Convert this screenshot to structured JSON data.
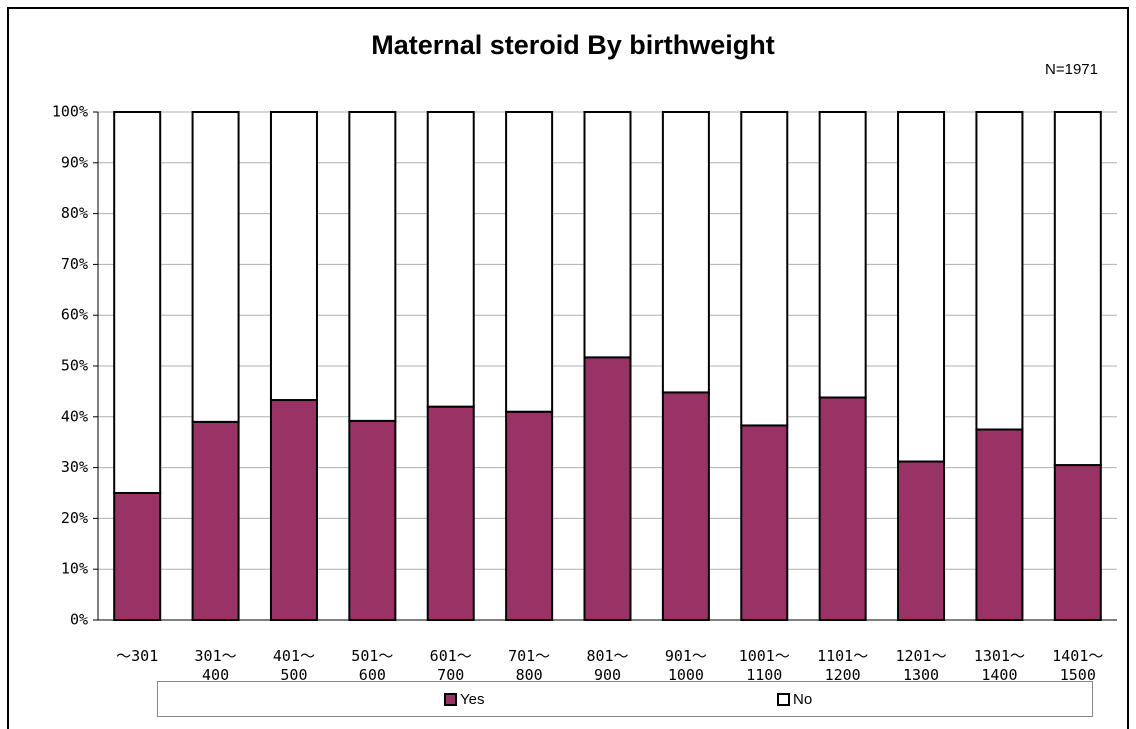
{
  "chart_data": {
    "type": "stacked_bar_100",
    "title": "Maternal steroid By birthweight",
    "annotation": "N=1971",
    "categories": [
      "～301",
      "301～\n400",
      "401～\n500",
      "501～\n600",
      "601～\n700",
      "701～\n800",
      "801～\n900",
      "901～\n1000",
      "1001～\n1100",
      "1101～\n1200",
      "1201～\n1300",
      "1301～\n1400",
      "1401～\n1500"
    ],
    "series": [
      {
        "name": "Yes",
        "color": "#993366",
        "values": [
          25,
          39,
          43.3,
          39.2,
          42,
          41,
          51.7,
          44.8,
          38.3,
          43.8,
          31.2,
          37.5,
          30.5
        ]
      },
      {
        "name": "No",
        "color": "#ffffff",
        "values": [
          75,
          61,
          56.7,
          60.8,
          58,
          59,
          48.3,
          55.2,
          61.7,
          56.2,
          68.8,
          62.5,
          69.5
        ]
      }
    ],
    "ylim": [
      0,
      100
    ],
    "yticks": [
      {
        "value": 0,
        "label": "0%"
      },
      {
        "value": 10,
        "label": "10%"
      },
      {
        "value": 20,
        "label": "20%"
      },
      {
        "value": 30,
        "label": "30%"
      },
      {
        "value": 40,
        "label": "40%"
      },
      {
        "value": 50,
        "label": "50%"
      },
      {
        "value": 60,
        "label": "60%"
      },
      {
        "value": 70,
        "label": "70%"
      },
      {
        "value": 80,
        "label": "80%"
      },
      {
        "value": 90,
        "label": "90%"
      },
      {
        "value": 100,
        "label": "100%"
      }
    ],
    "grid": true,
    "legend": "bottom"
  }
}
